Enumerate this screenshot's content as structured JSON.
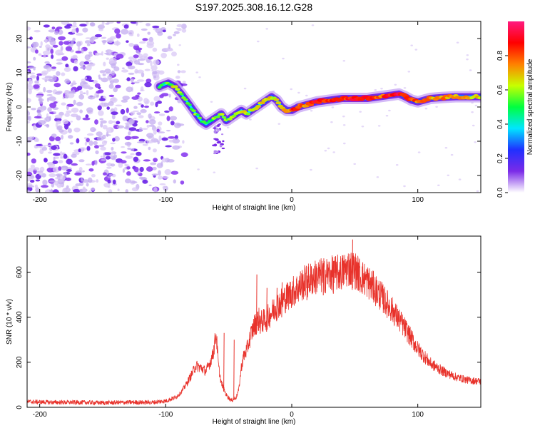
{
  "title": "S197.2025.308.16.12.G28",
  "colors": {
    "snr_line": "#e8322b",
    "frame": "#000000",
    "noise_dots": "#d9c8f5",
    "noise_blobs": "#6a22e8"
  },
  "chart_data": [
    {
      "type": "heatmap",
      "name": "spectrogram",
      "xlabel": "Height of straight line (km)",
      "ylabel": "Frequency (Hz)",
      "xlim": [
        -210,
        150
      ],
      "ylim": [
        -25,
        25
      ],
      "x_ticks": [
        -200,
        -100,
        0,
        100
      ],
      "y_ticks": [
        -20,
        -10,
        0,
        10,
        20
      ],
      "colorbar": {
        "label": "Normalized spectral amplitude",
        "range": [
          0,
          1
        ],
        "ticks": [
          "0.0",
          "0.2",
          "0.4",
          "0.6",
          "0.8"
        ],
        "tick_values": [
          0.0,
          0.2,
          0.4,
          0.6,
          0.8
        ],
        "colormap": [
          "#ffffff",
          "#7b2be8",
          "#2030ff",
          "#00e6ff",
          "#00ff40",
          "#c8ff00",
          "#ff8000",
          "#ff0000",
          "#ff1a80"
        ]
      },
      "noise_region_x": [
        -210,
        -85
      ],
      "ridge": {
        "x": [
          -105,
          -98,
          -93,
          -88,
          -84,
          -80,
          -76,
          -72,
          -68,
          -64,
          -60,
          -56,
          -52,
          -48,
          -44,
          -40,
          -36,
          -32,
          -28,
          -24,
          -20,
          -16,
          -12,
          -8,
          -4,
          0,
          5,
          10,
          20,
          30,
          40,
          50,
          60,
          70,
          80,
          85,
          90,
          95,
          100,
          105,
          110,
          120,
          130,
          140,
          150
        ],
        "freq": [
          6,
          7,
          6,
          4,
          2,
          0,
          -2,
          -4,
          -5,
          -4,
          -3,
          -2,
          -4,
          -3,
          -2,
          -1,
          -2,
          -1,
          0,
          1,
          2,
          3,
          2,
          0,
          -1,
          -1,
          0,
          0.5,
          1.5,
          2,
          2.5,
          2.5,
          2.5,
          3,
          3.5,
          3.8,
          3,
          2,
          1.5,
          2,
          2.5,
          2.8,
          3,
          3,
          3
        ],
        "amplitude": [
          0.2,
          0.3,
          0.45,
          0.3,
          0.25,
          0.3,
          0.35,
          0.25,
          0.3,
          0.35,
          0.3,
          0.35,
          0.4,
          0.35,
          0.4,
          0.5,
          0.45,
          0.5,
          0.55,
          0.6,
          0.6,
          0.55,
          0.5,
          0.55,
          0.6,
          0.75,
          0.85,
          0.6,
          0.85,
          0.75,
          0.8,
          0.9,
          0.95,
          0.7,
          0.9,
          0.9,
          0.8,
          0.75,
          0.7,
          0.85,
          0.6,
          0.65,
          0.6,
          0.55,
          0.5
        ]
      }
    },
    {
      "type": "line",
      "name": "snr",
      "xlabel": "Height of straight line (km)",
      "ylabel": "SNR (10 * v/v)",
      "xlim": [
        -210,
        150
      ],
      "ylim": [
        0,
        760
      ],
      "x_ticks": [
        -200,
        -100,
        0,
        100
      ],
      "y_ticks": [
        0,
        200,
        400,
        600
      ],
      "series": [
        {
          "name": "SNR",
          "x": [
            -210,
            -190,
            -170,
            -150,
            -130,
            -110,
            -100,
            -92,
            -88,
            -84,
            -80,
            -76,
            -72,
            -68,
            -64,
            -62,
            -60,
            -58,
            -56,
            -52,
            -48,
            -44,
            -42,
            -40,
            -38,
            -36,
            -34,
            -32,
            -30,
            -28,
            -26,
            -24,
            -22,
            -20,
            -16,
            -12,
            -8,
            -4,
            0,
            5,
            10,
            20,
            30,
            40,
            45,
            50,
            55,
            60,
            70,
            80,
            90,
            100,
            110,
            120,
            130,
            140,
            150
          ],
          "y": [
            25,
            22,
            22,
            20,
            22,
            22,
            28,
            45,
            65,
            100,
            140,
            185,
            175,
            160,
            210,
            250,
            330,
            175,
            110,
            55,
            30,
            45,
            80,
            180,
            230,
            250,
            290,
            330,
            360,
            380,
            390,
            380,
            385,
            395,
            420,
            450,
            470,
            490,
            510,
            530,
            555,
            580,
            590,
            600,
            620,
            610,
            580,
            560,
            500,
            430,
            350,
            260,
            195,
            160,
            135,
            120,
            115
          ]
        }
      ],
      "spikes": [
        {
          "x": -54,
          "y": 330
        },
        {
          "x": -28,
          "y": 590
        },
        {
          "x": -20,
          "y": 530
        },
        {
          "x": -25,
          "y": 390
        },
        {
          "x": -46,
          "y": 300
        },
        {
          "x": 48,
          "y": 745
        },
        {
          "x": 33,
          "y": 650
        },
        {
          "x": -12,
          "y": 530
        },
        {
          "x": -8,
          "y": 555
        },
        {
          "x": 25,
          "y": 640
        },
        {
          "x": 12,
          "y": 585
        }
      ]
    }
  ]
}
